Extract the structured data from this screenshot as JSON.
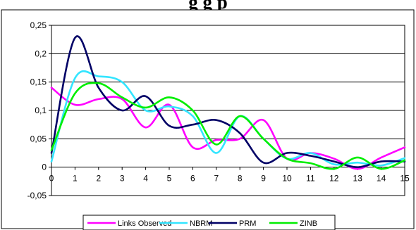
{
  "chart_data": {
    "type": "line",
    "title": "g                                                              g p",
    "xlabel": "",
    "ylabel": "",
    "xlim": [
      0,
      15
    ],
    "ylim": [
      -0.05,
      0.25
    ],
    "x_ticks": [
      "0",
      "1",
      "2",
      "3",
      "4",
      "5",
      "6",
      "7",
      "8",
      "9",
      "10",
      "11",
      "12",
      "13",
      "14",
      "15"
    ],
    "y_ticks": [
      "0,25",
      "0,2",
      "0,15",
      "0,1",
      "0,05",
      "0",
      "-0,05"
    ],
    "y_tick_values": [
      0.25,
      0.2,
      0.15,
      0.1,
      0.05,
      0,
      -0.05
    ],
    "grid": true,
    "legend_position": "bottom",
    "x": [
      0,
      1,
      2,
      3,
      4,
      5,
      6,
      7,
      8,
      9,
      10,
      11,
      12,
      13,
      14,
      15
    ],
    "series": [
      {
        "name": "Links Observed",
        "color": "#ff00ff",
        "values": [
          0.14,
          0.11,
          0.12,
          0.12,
          0.07,
          0.11,
          0.035,
          0.048,
          0.05,
          0.083,
          0.015,
          0.025,
          0.015,
          -0.003,
          0.017,
          0.035
        ]
      },
      {
        "name": "NBRM",
        "color": "#33e5ff",
        "values": [
          0.01,
          0.157,
          0.16,
          0.15,
          0.1,
          0.107,
          0.09,
          0.025,
          0.09,
          0.05,
          0.015,
          0.025,
          0.005,
          0.008,
          0.003,
          0.016
        ]
      },
      {
        "name": "PRM",
        "color": "#000066",
        "values": [
          0.025,
          0.228,
          0.14,
          0.1,
          0.125,
          0.073,
          0.075,
          0.083,
          0.06,
          0.008,
          0.025,
          0.02,
          0.01,
          0.0,
          0.01,
          0.01
        ]
      },
      {
        "name": "ZINB",
        "color": "#00ee00",
        "values": [
          0.03,
          0.13,
          0.148,
          0.123,
          0.105,
          0.123,
          0.1,
          0.04,
          0.09,
          0.05,
          0.015,
          0.007,
          -0.003,
          0.017,
          -0.003,
          0.012
        ]
      }
    ]
  }
}
